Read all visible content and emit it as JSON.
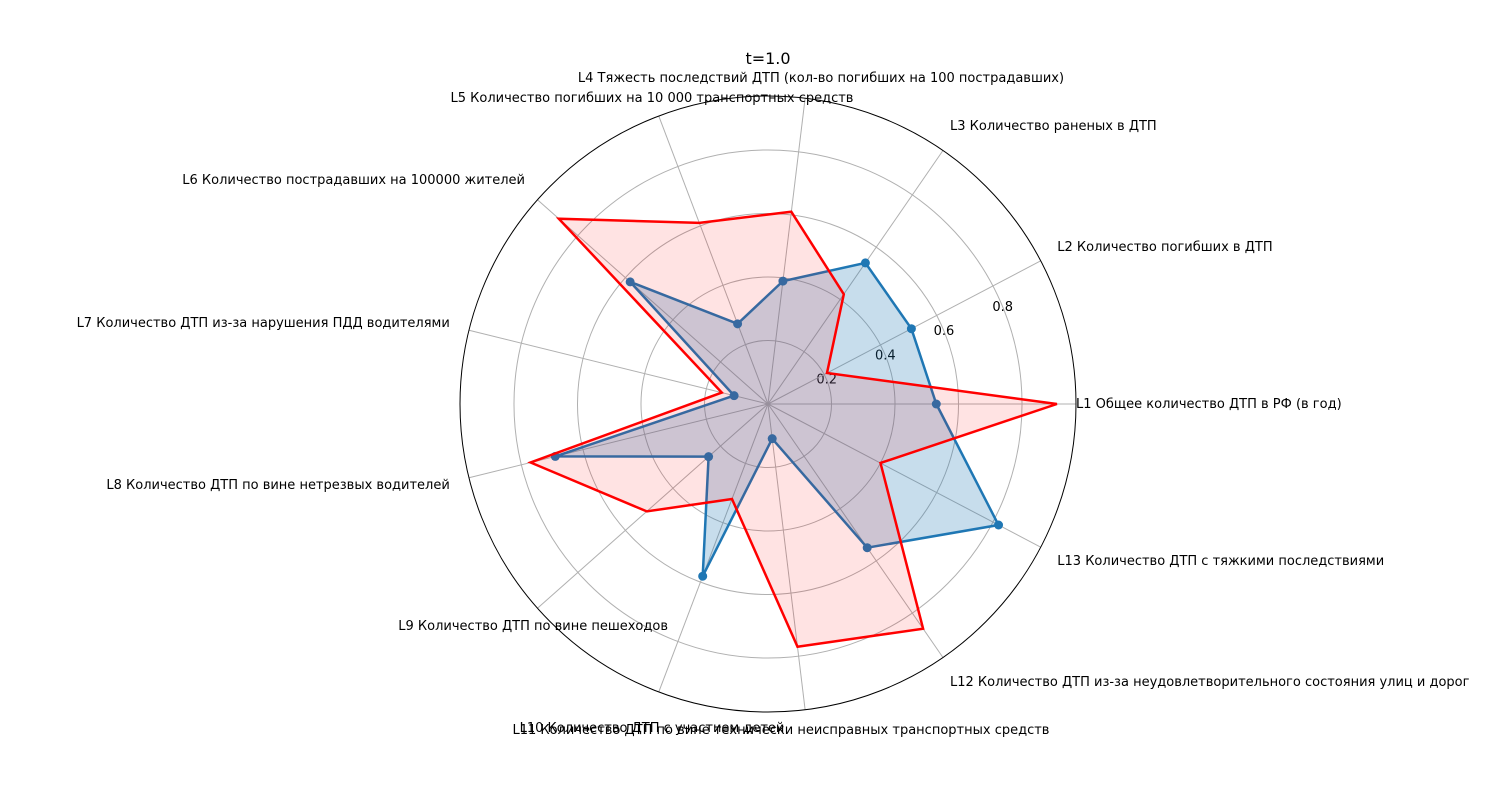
{
  "chart_data": {
    "type": "radar",
    "title": "t=1.0",
    "axes": [
      "L1 Общее количество ДТП в РФ (в год)",
      "L2 Количество погибших в ДТП",
      "L3 Количество раненых в ДТП",
      "L4 Тяжесть последствий ДТП (кол-во погибших на 100 пострадавших)",
      "L5 Количество погибших на 10 000 транспортных средств",
      "L6 Количество пострадавших на 100000 жителей",
      "L7 Количество ДТП из-за нарушения ПДД водителями",
      "L8 Количество ДТП по вине нетрезвых водителей",
      "L9 Количество ДТП по вине пешеходов",
      "L10 Количество ДТП с участием детей",
      "L11 Количество ДТП по вине технически неисправных транспортных средств",
      "L12 Количество ДТП из-за неудовлетворительного состояния улиц и дорог",
      "L13 Количество ДТП с тяжкими последствиями"
    ],
    "rticks": [
      "0.2",
      "0.4",
      "0.6",
      "0.8"
    ],
    "rmax": 0.97,
    "series": [
      {
        "color": "#1f77b4",
        "fill": true,
        "markers": true,
        "values": [
          0.53,
          0.51,
          0.54,
          0.39,
          0.27,
          0.58,
          0.11,
          0.69,
          0.25,
          0.58,
          0.11,
          0.55,
          0.82
        ]
      },
      {
        "color": "#ff0000",
        "fill": true,
        "markers": false,
        "values": [
          0.91,
          0.21,
          0.42,
          0.61,
          0.61,
          0.88,
          0.15,
          0.77,
          0.51,
          0.32,
          0.77,
          0.86,
          0.4
        ]
      }
    ]
  }
}
